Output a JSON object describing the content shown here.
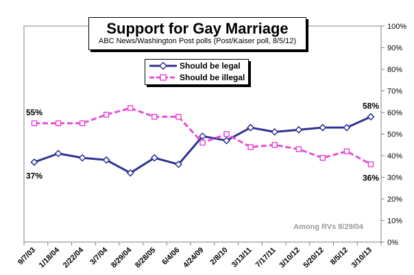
{
  "chart_data": {
    "type": "line",
    "title": "Support for Gay Marriage",
    "subtitle": "ABC News/Washington Post polls (Post/Kaiser poll, 8/5/12)",
    "categories": [
      "9/7/03",
      "1/18/04",
      "2/22/04",
      "3/7/04",
      "8/29/04",
      "8/28/05",
      "6/4/06",
      "4/24/09",
      "2/8/10",
      "3/13/11",
      "7/17/11",
      "3/10/12",
      "5/20/12",
      "8/5/12",
      "3/10/13"
    ],
    "series": [
      {
        "name": "Should be legal",
        "color": "#2E3192",
        "marker": "diamond",
        "values": [
          37,
          41,
          39,
          38,
          32,
          39,
          36,
          49,
          47,
          53,
          51,
          52,
          53,
          53,
          58
        ]
      },
      {
        "name": "Should be illegal",
        "color": "#E64ED6",
        "marker": "square",
        "values": [
          55,
          55,
          55,
          59,
          62,
          58,
          58,
          46,
          50,
          44,
          45,
          43,
          39,
          42,
          36
        ]
      }
    ],
    "ylim": [
      0,
      100
    ],
    "y_ticks": [
      "0%",
      "10%",
      "20%",
      "30%",
      "40%",
      "50%",
      "60%",
      "70%",
      "80%",
      "90%",
      "100%"
    ],
    "data_labels": [
      {
        "text": "55%",
        "series": 1,
        "index": 0,
        "position": "above"
      },
      {
        "text": "37%",
        "series": 0,
        "index": 0,
        "position": "below"
      },
      {
        "text": "58%",
        "series": 0,
        "index": 14,
        "position": "above"
      },
      {
        "text": "36%",
        "series": 1,
        "index": 14,
        "position": "below"
      }
    ],
    "annotation": "Among RVs 8/29/04",
    "y_axis_side": "right",
    "grid": false,
    "legend_position": "top-center"
  }
}
